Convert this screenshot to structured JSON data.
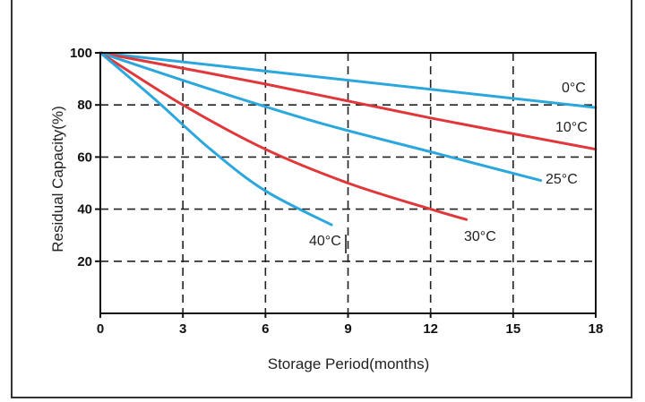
{
  "chart_data": {
    "type": "line",
    "xlabel": "Storage Period(months)",
    "ylabel": "Residual Capacity(%)",
    "xlim": [
      0,
      18
    ],
    "ylim": [
      0,
      100
    ],
    "x_ticks": [
      "0",
      "3",
      "6",
      "9",
      "12",
      "15",
      "18"
    ],
    "y_ticks": [
      "20",
      "40",
      "60",
      "80",
      "100"
    ],
    "grid": true,
    "series": [
      {
        "name": "0°C",
        "color": "#2ba7dd",
        "x": [
          0,
          18
        ],
        "y": [
          100,
          79
        ]
      },
      {
        "name": "10°C",
        "color": "#e0383a",
        "x": [
          0,
          6,
          12,
          18
        ],
        "y": [
          100,
          88,
          75,
          63
        ]
      },
      {
        "name": "25°C",
        "color": "#2ba7dd",
        "x": [
          0,
          4,
          8,
          12,
          16
        ],
        "y": [
          100,
          86,
          73,
          62,
          51
        ]
      },
      {
        "name": "30°C",
        "color": "#e0383a",
        "x": [
          0,
          3,
          6,
          9,
          12,
          13.3
        ],
        "y": [
          100,
          80,
          63,
          50,
          40,
          36
        ]
      },
      {
        "name": "40°C",
        "color": "#2ba7dd",
        "x": [
          0,
          2,
          4,
          6,
          8.4
        ],
        "y": [
          100,
          82,
          63,
          47,
          34
        ]
      }
    ]
  }
}
